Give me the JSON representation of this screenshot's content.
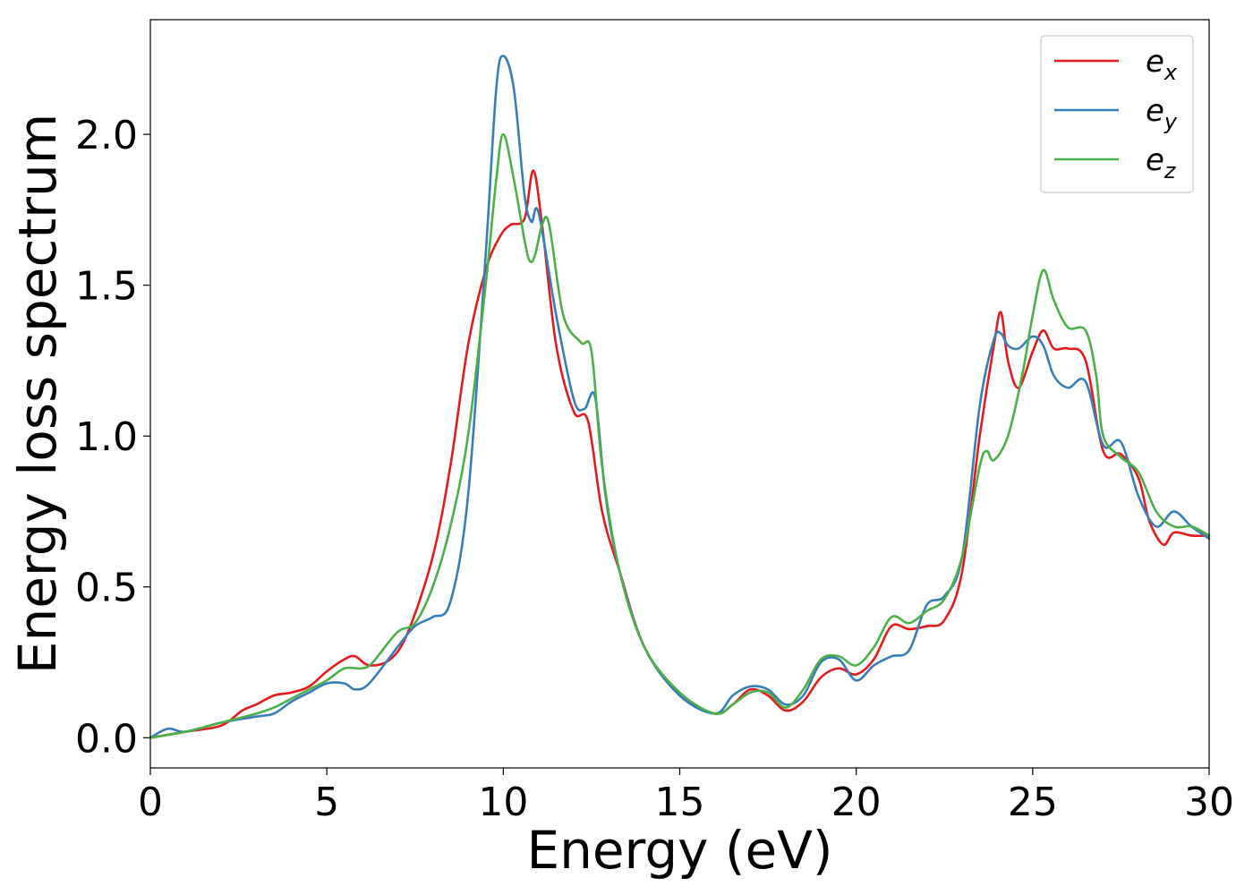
{
  "chart_data": {
    "type": "line",
    "xlabel": "Energy (eV)",
    "ylabel": "Energy loss spectrum",
    "xlim": [
      0,
      30
    ],
    "ylim": [
      -0.1,
      2.38
    ],
    "xticks": [
      "0",
      "5",
      "10",
      "15",
      "20",
      "25",
      "30"
    ],
    "yticks": [
      "0.0",
      "0.5",
      "1.0",
      "1.5",
      "2.0"
    ],
    "grid": false,
    "legend_position": "top-right",
    "series": [
      {
        "name": "e_x",
        "label_base": "e",
        "label_sub": "x",
        "color": "#e41a1c",
        "x": [
          0,
          1,
          2,
          2.6,
          3,
          3.5,
          4,
          4.5,
          5,
          5.5,
          5.8,
          6.2,
          6.8,
          7.3,
          8,
          8.5,
          9,
          9.5,
          9.9,
          10.2,
          10.6,
          10.85,
          11.1,
          11.5,
          12,
          12.4,
          12.8,
          13.3,
          14,
          15,
          16,
          16.5,
          17,
          17.5,
          18,
          18.5,
          19,
          19.5,
          20,
          20.5,
          21,
          21.5,
          22,
          22.5,
          23,
          23.5,
          23.9,
          24.1,
          24.3,
          24.6,
          25,
          25.3,
          25.6,
          26,
          26.5,
          27,
          27.5,
          28,
          28.3,
          28.7,
          29,
          29.5,
          30
        ],
        "y": [
          0.0,
          0.02,
          0.04,
          0.09,
          0.11,
          0.14,
          0.15,
          0.17,
          0.22,
          0.26,
          0.27,
          0.24,
          0.26,
          0.35,
          0.6,
          0.9,
          1.3,
          1.55,
          1.66,
          1.7,
          1.72,
          1.88,
          1.7,
          1.3,
          1.08,
          1.05,
          0.75,
          0.55,
          0.3,
          0.14,
          0.08,
          0.11,
          0.16,
          0.14,
          0.09,
          0.12,
          0.2,
          0.23,
          0.21,
          0.26,
          0.37,
          0.36,
          0.37,
          0.39,
          0.55,
          1.0,
          1.3,
          1.41,
          1.25,
          1.16,
          1.28,
          1.35,
          1.29,
          1.29,
          1.25,
          0.95,
          0.94,
          0.86,
          0.72,
          0.64,
          0.68,
          0.67,
          0.67
        ]
      },
      {
        "name": "e_y",
        "label_base": "e",
        "label_sub": "y",
        "color": "#377eb8",
        "x": [
          0,
          0.5,
          1,
          2,
          3,
          3.5,
          4,
          4.5,
          5,
          5.5,
          5.8,
          6.2,
          7,
          7.5,
          8,
          8.5,
          9,
          9.5,
          9.8,
          10,
          10.3,
          10.6,
          10.8,
          11,
          11.5,
          12,
          12.3,
          12.6,
          12.9,
          13.3,
          14,
          15,
          16,
          16.5,
          17,
          17.5,
          18,
          18.5,
          19,
          19.5,
          20,
          20.5,
          21,
          21.5,
          22,
          22.5,
          23,
          23.5,
          23.9,
          24.1,
          24.3,
          24.6,
          25,
          25.3,
          25.6,
          26,
          26.5,
          27,
          27.5,
          28,
          28.5,
          29,
          29.5,
          30
        ],
        "y": [
          0.0,
          0.03,
          0.02,
          0.05,
          0.07,
          0.08,
          0.12,
          0.15,
          0.18,
          0.18,
          0.16,
          0.18,
          0.3,
          0.37,
          0.4,
          0.45,
          0.8,
          1.6,
          2.15,
          2.26,
          2.15,
          1.8,
          1.71,
          1.74,
          1.4,
          1.12,
          1.09,
          1.13,
          0.8,
          0.55,
          0.3,
          0.14,
          0.08,
          0.14,
          0.17,
          0.16,
          0.11,
          0.14,
          0.25,
          0.26,
          0.19,
          0.24,
          0.27,
          0.29,
          0.44,
          0.47,
          0.6,
          1.1,
          1.32,
          1.34,
          1.3,
          1.29,
          1.33,
          1.3,
          1.2,
          1.16,
          1.18,
          0.97,
          0.98,
          0.8,
          0.7,
          0.75,
          0.7,
          0.66
        ]
      },
      {
        "name": "e_z",
        "label_base": "e",
        "label_sub": "z",
        "color": "#4daf4a",
        "x": [
          0,
          1,
          2,
          3,
          3.5,
          4,
          4.5,
          5,
          5.5,
          6,
          6.3,
          7,
          7.5,
          8,
          8.5,
          9,
          9.5,
          9.8,
          10,
          10.3,
          10.6,
          10.75,
          10.9,
          11.1,
          11.3,
          11.7,
          12.2,
          12.5,
          12.8,
          13.3,
          14,
          15,
          16,
          16.5,
          17,
          17.5,
          18,
          18.5,
          19,
          19.5,
          20,
          20.5,
          21,
          21.5,
          22,
          22.5,
          23,
          23.5,
          23.7,
          23.9,
          24.3,
          24.7,
          25,
          25.3,
          25.6,
          26,
          26.5,
          26.8,
          27,
          27.5,
          28,
          28.5,
          29,
          29.5,
          30
        ],
        "y": [
          0.0,
          0.02,
          0.05,
          0.08,
          0.1,
          0.13,
          0.16,
          0.19,
          0.23,
          0.23,
          0.25,
          0.35,
          0.38,
          0.5,
          0.7,
          1.0,
          1.5,
          1.85,
          2.0,
          1.85,
          1.65,
          1.58,
          1.6,
          1.7,
          1.7,
          1.4,
          1.31,
          1.28,
          0.9,
          0.55,
          0.3,
          0.15,
          0.08,
          0.11,
          0.15,
          0.15,
          0.1,
          0.16,
          0.26,
          0.27,
          0.24,
          0.3,
          0.4,
          0.38,
          0.42,
          0.46,
          0.6,
          0.9,
          0.95,
          0.92,
          1.0,
          1.2,
          1.4,
          1.55,
          1.45,
          1.36,
          1.35,
          1.2,
          1.0,
          0.93,
          0.88,
          0.75,
          0.7,
          0.7,
          0.67
        ]
      }
    ]
  }
}
